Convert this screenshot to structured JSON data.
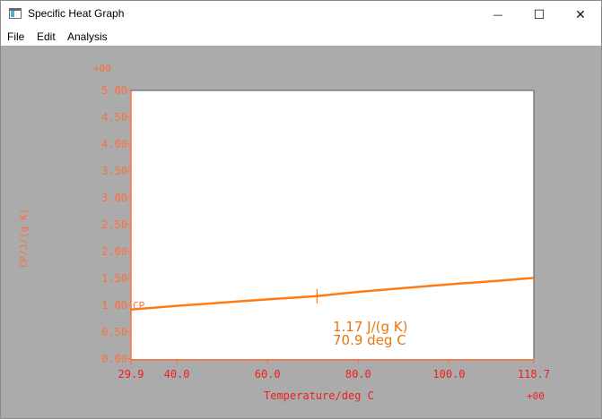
{
  "window": {
    "title": "Specific Heat Graph",
    "minimize_glyph": "—",
    "maximize_glyph": "☐",
    "close_glyph": "✕"
  },
  "menu": {
    "items": [
      "File",
      "Edit",
      "Analysis"
    ]
  },
  "colors": {
    "axis": "#ff6f3a",
    "label": "#ff6f3a",
    "series": "#ff7a12",
    "readout": "#e8760e",
    "tick_label_x": "#f21e1e",
    "background": "#ababab",
    "plot": "#ffffff"
  },
  "chart_data": {
    "type": "line",
    "xlabel": "Temperature/deg C",
    "ylabel": "CP/J/(g K)",
    "x_exponent": "+00",
    "y_exponent": "+00",
    "xlim": [
      29.9,
      118.7
    ],
    "ylim": [
      0.0,
      5.0
    ],
    "x_ticks": [
      29.9,
      40.0,
      60.0,
      80.0,
      100.0,
      118.7
    ],
    "x_tick_labels": [
      "29.9",
      "40.0",
      "60.0",
      "80.0",
      "100.0",
      "118.7"
    ],
    "y_ticks": [
      0.0,
      0.5,
      1.0,
      1.5,
      2.0,
      2.5,
      3.0,
      3.5,
      4.0,
      4.5,
      5.0
    ],
    "y_tick_labels": [
      "0.00",
      "0.50",
      "1.00",
      "1.50",
      "2.00",
      "2.50",
      "3.00",
      "3.50",
      "4.00",
      "4.50",
      "5.00"
    ],
    "grid": false,
    "series": [
      {
        "name": "CP",
        "x": [
          29.9,
          40.0,
          50.0,
          60.0,
          70.9,
          80.0,
          90.0,
          100.0,
          110.0,
          118.7
        ],
        "y": [
          0.92,
          0.99,
          1.05,
          1.11,
          1.17,
          1.25,
          1.32,
          1.39,
          1.45,
          1.51
        ]
      }
    ],
    "cursor": {
      "x": 70.9,
      "y": 1.17
    },
    "readout": {
      "value": "1.17 J/(g K)",
      "temperature": "70.9 deg C"
    }
  }
}
